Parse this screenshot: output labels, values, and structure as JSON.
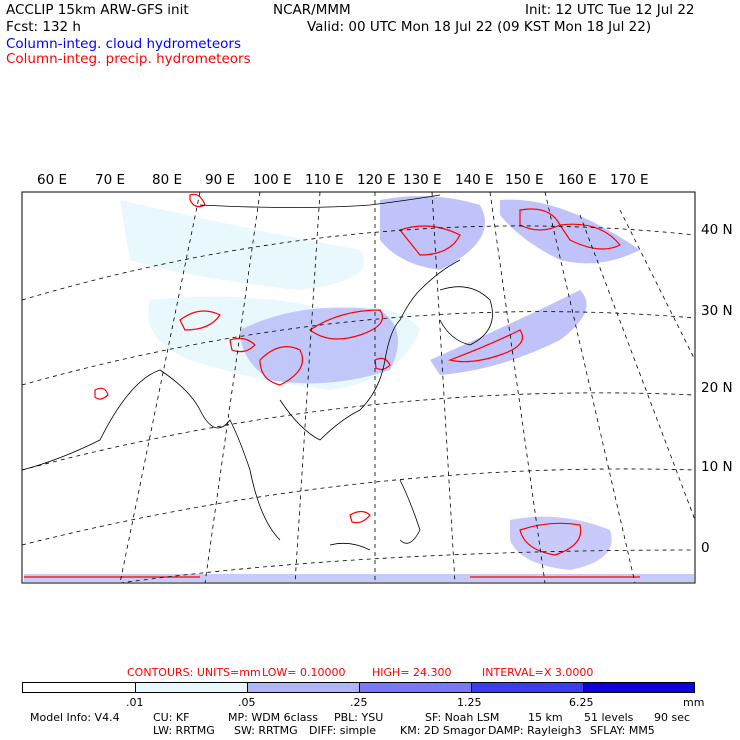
{
  "header": {
    "title": "ACCLIP 15km ARW-GFS init",
    "org": "NCAR/MMM",
    "init": "Init: 12 UTC Tue 12 Jul 22",
    "fcst": "Fcst:  132 h",
    "valid": "Valid: 00 UTC Mon 18 Jul 22 (09 KST Mon 18 Jul 22)",
    "field1": "Column-integ. cloud hydrometeors",
    "field2": "Column-integ. precip. hydrometeors"
  },
  "map": {
    "lon_labels": [
      "60 E",
      "70 E",
      "80 E",
      "90 E",
      "100 E",
      "110 E",
      "120 E",
      "130 E",
      "140 E",
      "150 E",
      "160 E",
      "170 E"
    ],
    "lat_labels": [
      "40 N",
      "30 N",
      "20 N",
      "10 N",
      "0"
    ],
    "colors": {
      "cloud_light": "#e8f8fc",
      "cloud_mid": "#b0b4f8",
      "precip": "#ff0000",
      "frame": "#000000"
    }
  },
  "contours": {
    "units": "CONTOURS:  UNITS=mm",
    "low": "LOW=  0.10000",
    "high": "HIGH=   24.300",
    "interval": "INTERVAL=X   3.0000"
  },
  "colorbar": {
    "colors": [
      "#ffffff",
      "#e8f8fc",
      "#b0b4f8",
      "#7878f8",
      "#3c3cf0",
      "#1000e0"
    ],
    "ticks": [
      ".01",
      ".05",
      ".25",
      "1.25",
      "6.25"
    ],
    "units": "mm"
  },
  "model_info": {
    "line1": [
      "Model Info: V4.4",
      "CU: KF",
      "MP: WDM 6class",
      "PBL: YSU",
      "SF: Noah LSM",
      "15 km",
      "51 levels",
      "90 sec"
    ],
    "line2": [
      "LW: RRTMG",
      "SW: RRTMG",
      "DIFF: simple",
      "KM: 2D Smagor",
      "DAMP: Rayleigh3",
      "SFLAY: MM5"
    ]
  }
}
